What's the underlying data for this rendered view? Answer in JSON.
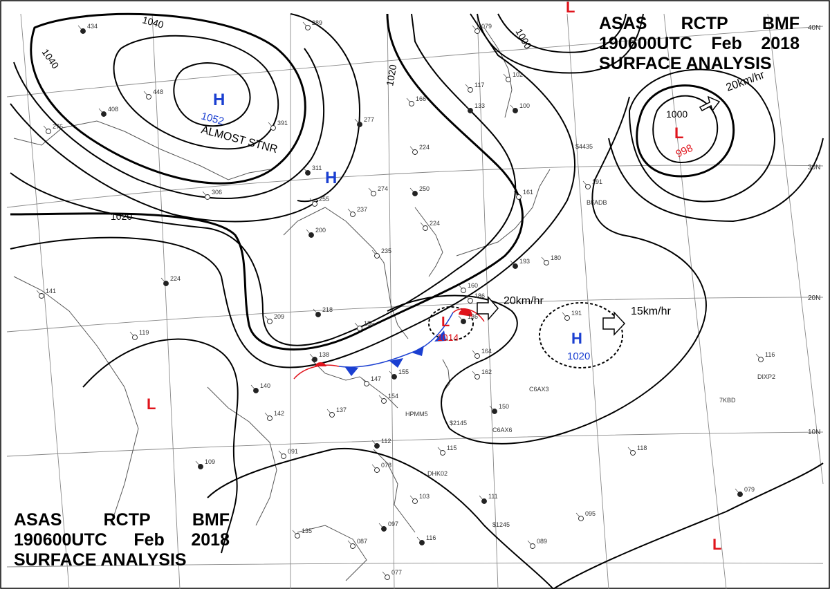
{
  "title_block_top": {
    "agency": "ASAS",
    "station": "RCTP",
    "code": "BMF",
    "datetime": "190600UTC",
    "month": "Feb",
    "year": "2018",
    "product": "SURFACE ANALYSIS"
  },
  "title_block_bottom": {
    "agency": "ASAS",
    "station": "RCTP",
    "code": "BMF",
    "datetime": "190600UTC",
    "month": "Feb",
    "year": "2018",
    "product": "SURFACE ANALYSIS"
  },
  "latitude_labels": [
    "40N",
    "30N",
    "20N",
    "10N"
  ],
  "isobar_labels": [
    "1040",
    "1040",
    "1020",
    "1020",
    "1000",
    "1000"
  ],
  "pressure_centers": [
    {
      "type": "H",
      "value": "1052",
      "note": "ALMOST STNR",
      "color": "#1a3fd1"
    },
    {
      "type": "H",
      "value": "",
      "color": "#1a3fd1"
    },
    {
      "type": "L",
      "value": "998",
      "color": "#e0141c"
    },
    {
      "type": "L",
      "value": "1014",
      "color": "#e0141c"
    },
    {
      "type": "H",
      "value": "1020",
      "color": "#1a3fd1"
    },
    {
      "type": "L",
      "value": "",
      "color": "#e0141c"
    },
    {
      "type": "L",
      "value": "",
      "color": "#e0141c"
    },
    {
      "type": "L",
      "value": "",
      "color": "#e0141c"
    }
  ],
  "motion_labels": [
    "20km/hr",
    "20km/hr",
    "15km/hr"
  ],
  "station_numbers": [
    "434",
    "289",
    "448",
    "408",
    "276",
    "391",
    "311",
    "306",
    "255",
    "200",
    "237",
    "274",
    "250",
    "224",
    "235",
    "218",
    "209",
    "155",
    "138",
    "147",
    "154",
    "155",
    "164",
    "162",
    "150",
    "137",
    "142",
    "140",
    "119",
    "141",
    "224",
    "191",
    "180",
    "193",
    "160",
    "186",
    "136",
    "191",
    "161",
    "133",
    "117",
    "102",
    "100",
    "079",
    "166",
    "277",
    "224",
    "115",
    "112",
    "078",
    "103",
    "111",
    "095",
    "089",
    "097",
    "087",
    "077",
    "116",
    "135",
    "091",
    "109",
    "118",
    "116",
    "079"
  ],
  "station_ids": [
    "$4435",
    "BFADB",
    "C6AX3",
    "$2145",
    "C6AX6",
    "HPMM5",
    "7KBD",
    "DIXP2",
    "DHK02",
    "$1245"
  ],
  "colors": {
    "isobar": "#000000",
    "high": "#1a3fd1",
    "low": "#e0141c",
    "coast": "#555555",
    "grid": "#777777",
    "cold_front": "#1a3fd1",
    "warm_front": "#e0141c"
  }
}
